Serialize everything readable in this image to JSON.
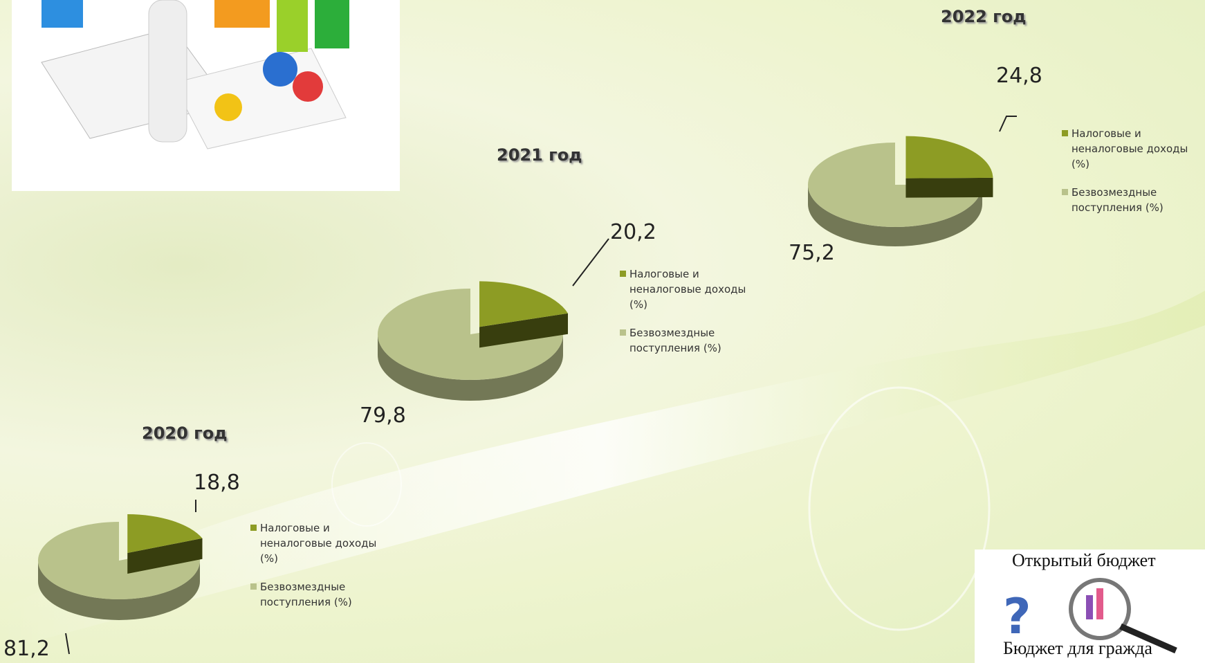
{
  "chart_data": [
    {
      "type": "pie",
      "title": "2020 год",
      "categories": [
        "Налоговые и неналоговые доходы (%)",
        "Безвозмездные поступления (%)"
      ],
      "values": [
        18.8,
        81.2
      ],
      "value_labels": [
        "18,8",
        "81,2"
      ],
      "colors": [
        "#8d9c24",
        "#b9c28b"
      ],
      "legend": "right"
    },
    {
      "type": "pie",
      "title": "2021 год",
      "categories": [
        "Налоговые и неналоговые доходы (%)",
        "Безвозмездные поступления (%)"
      ],
      "values": [
        20.2,
        79.8
      ],
      "value_labels": [
        "20,2",
        "79,8"
      ],
      "colors": [
        "#8d9c24",
        "#b9c28b"
      ],
      "legend": "right"
    },
    {
      "type": "pie",
      "title": "2022 год",
      "categories": [
        "Налоговые и неналоговые доходы (%)",
        "Безвозмездные поступления (%)"
      ],
      "values": [
        24.8,
        75.2
      ],
      "value_labels": [
        "24,8",
        "75,2"
      ],
      "colors": [
        "#8d9c24",
        "#b9c28b"
      ],
      "legend": "right"
    }
  ],
  "logo": {
    "top": "Открытый бюджет",
    "bottom": "Бюджет для гражда"
  }
}
